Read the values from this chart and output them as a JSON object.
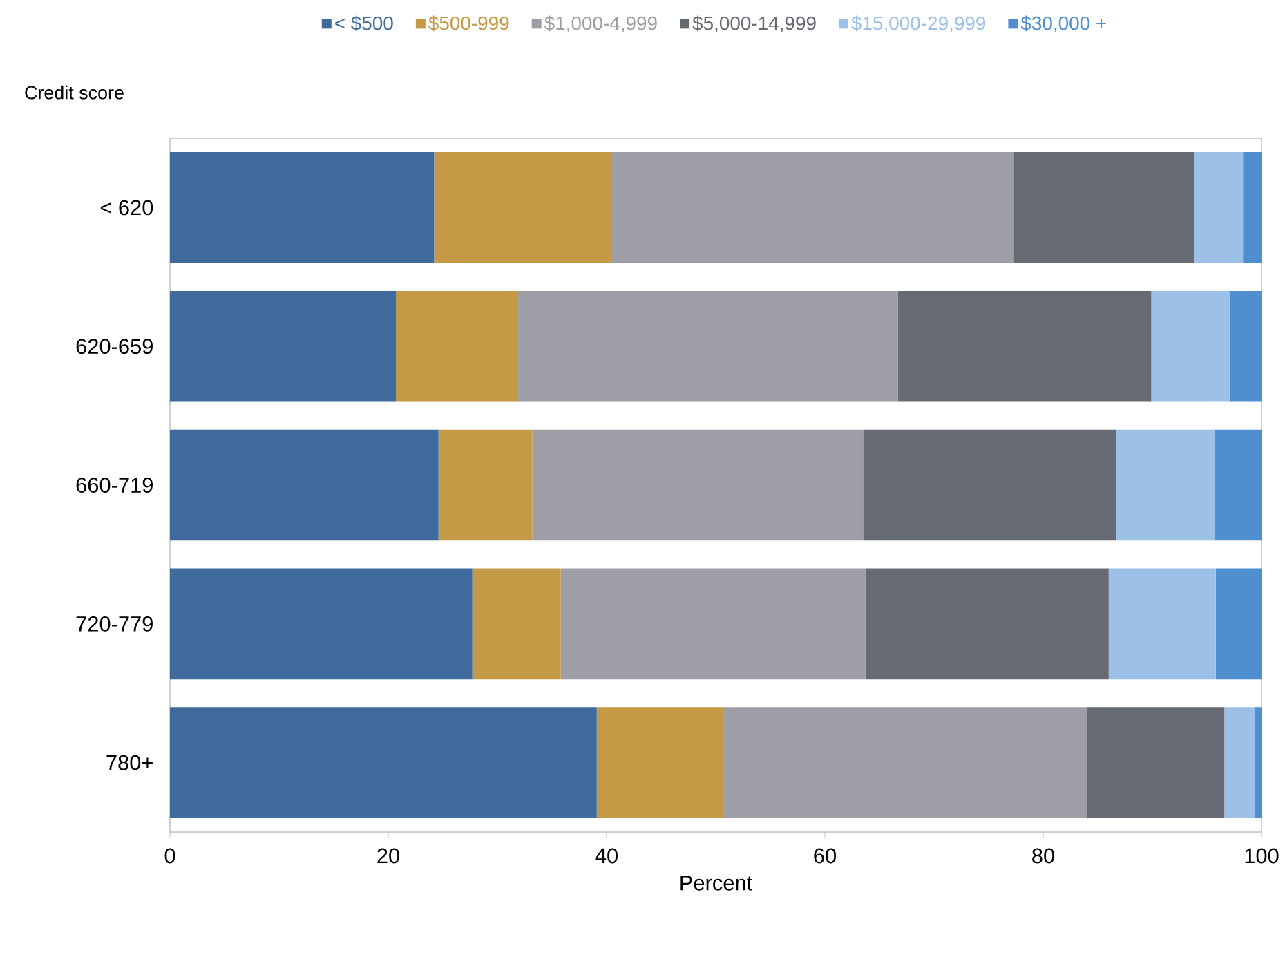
{
  "chart_data": {
    "type": "bar",
    "orientation": "horizontal",
    "stacked": true,
    "ylabel": "Credit score",
    "xlabel": "Percent",
    "categories": [
      "< 620",
      "620-659",
      "660-719",
      "720-779",
      "780+"
    ],
    "series": [
      {
        "name": "< $500",
        "color": "#3e6b9c",
        "values": [
          24.2,
          20.7,
          24.6,
          27.7,
          39.1
        ]
      },
      {
        "name": "$500-999",
        "color": "#c49a47",
        "values": [
          16.2,
          11.2,
          8.6,
          8.1,
          11.6
        ]
      },
      {
        "name": "$1,000-4,999",
        "color": "#9e9ea7",
        "values": [
          36.9,
          34.8,
          30.3,
          27.9,
          33.3
        ]
      },
      {
        "name": "$5,000-14,999",
        "color": "#666a73",
        "values": [
          16.5,
          23.2,
          23.2,
          22.3,
          12.6
        ]
      },
      {
        "name": "$15,000-29,999",
        "color": "#9dc0e8",
        "values": [
          4.5,
          7.2,
          9.0,
          9.8,
          2.8
        ]
      },
      {
        "name": "$30,000 +",
        "color": "#4f8fcf",
        "values": [
          1.7,
          2.9,
          4.3,
          4.2,
          0.6
        ]
      }
    ],
    "xlim": [
      0,
      100
    ],
    "xticks": [
      0,
      20,
      40,
      60,
      80,
      100
    ],
    "legend": "top"
  }
}
